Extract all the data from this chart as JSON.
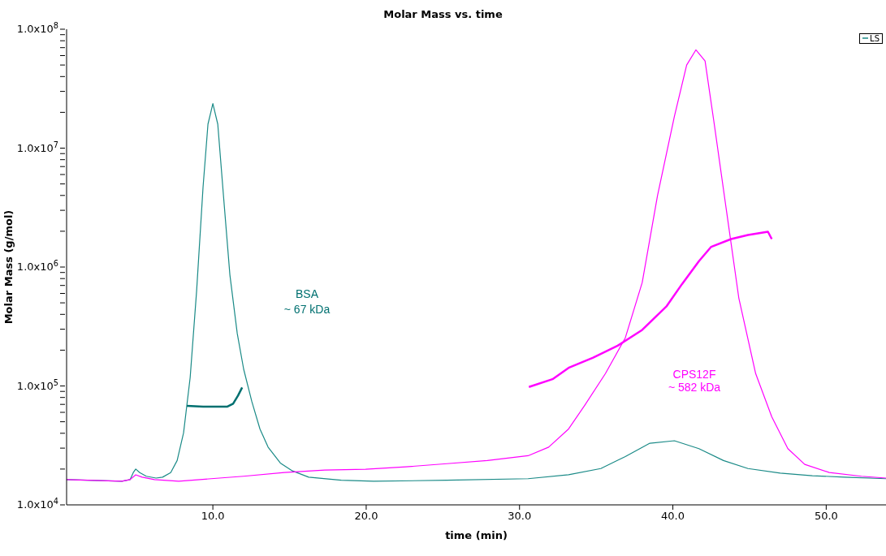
{
  "chart_data": {
    "type": "line",
    "title": "Molar Mass vs. time",
    "xlabel": "time (min)",
    "ylabel": "Molar Mass (g/mol)",
    "log": "y",
    "grid": false,
    "legend": "top right",
    "marker": "none",
    "line_style": "solid",
    "xlim": [
      0.46,
      53.9
    ],
    "xticks": [
      {
        "value": 10,
        "label": "10.0"
      },
      {
        "value": 20,
        "label": "20.0"
      },
      {
        "value": 30,
        "label": "30.0"
      },
      {
        "value": 40,
        "label": "40.0"
      },
      {
        "value": 50,
        "label": "50.0"
      }
    ],
    "ylim": [
      10000,
      100000000
    ],
    "yticks": [
      {
        "value": 10000,
        "label": "1.0x10$^{4}$"
      },
      {
        "value": 20000,
        "label": null
      },
      {
        "value": 30000,
        "label": null
      },
      {
        "value": 40000,
        "label": null
      },
      {
        "value": 50000,
        "label": null
      },
      {
        "value": 60000,
        "label": null
      },
      {
        "value": 70000,
        "label": null
      },
      {
        "value": 80000,
        "label": null
      },
      {
        "value": 90000,
        "label": null
      },
      {
        "value": 100000,
        "label": "1.0x10$^{5}$"
      },
      {
        "value": 200000,
        "label": null
      },
      {
        "value": 300000,
        "label": null
      },
      {
        "value": 400000,
        "label": null
      },
      {
        "value": 500000,
        "label": null
      },
      {
        "value": 600000,
        "label": null
      },
      {
        "value": 700000,
        "label": null
      },
      {
        "value": 800000,
        "label": null
      },
      {
        "value": 900000,
        "label": null
      },
      {
        "value": 1000000,
        "label": "1.0x10$^{6}$"
      },
      {
        "value": 2000000,
        "label": null
      },
      {
        "value": 3000000,
        "label": null
      },
      {
        "value": 4000000,
        "label": null
      },
      {
        "value": 5000000,
        "label": null
      },
      {
        "value": 6000000,
        "label": null
      },
      {
        "value": 7000000,
        "label": null
      },
      {
        "value": 8000000,
        "label": null
      },
      {
        "value": 9000000,
        "label": null
      },
      {
        "value": 10000000,
        "label": "1.0x10$^{7}$"
      },
      {
        "value": 20000000,
        "label": null
      },
      {
        "value": 30000000,
        "label": null
      },
      {
        "value": 40000000,
        "label": null
      },
      {
        "value": 50000000,
        "label": null
      },
      {
        "value": 60000000,
        "label": null
      },
      {
        "value": 70000000,
        "label": null
      },
      {
        "value": 80000000,
        "label": null
      },
      {
        "value": 90000000,
        "label": null
      },
      {
        "value": 100000000,
        "label": "1.0x10$^{8}$"
      }
    ],
    "series": [
      {
        "name": "LS",
        "color": "#1a8a87",
        "x": [
          0.46,
          4.07,
          4.6,
          4.81,
          4.97,
          5.23,
          5.66,
          6.29,
          6.72,
          7.25,
          7.67,
          8.09,
          8.52,
          8.94,
          9.36,
          9.68,
          10.0,
          10.32,
          10.69,
          11.11,
          11.59,
          12.01,
          12.54,
          13.07,
          13.6,
          14.4,
          15.19,
          16.25,
          18.37,
          20.49,
          25.26,
          30.56,
          33.2,
          35.3,
          36.9,
          38.5,
          40.1,
          41.7,
          43.3,
          44.9,
          47.0,
          49.1,
          51.2,
          53.9
        ],
        "values": [
          16300,
          15800,
          16300,
          18700,
          20000,
          18700,
          17400,
          16800,
          17100,
          18700,
          23600,
          40400,
          118000,
          630000,
          4700000,
          15900000,
          23700000,
          15900000,
          4000000,
          860000,
          276000,
          138000,
          74000,
          43500,
          30600,
          22500,
          19300,
          17100,
          16100,
          15800,
          16100,
          16600,
          17900,
          20200,
          25500,
          33000,
          34600,
          29700,
          23600,
          20200,
          18500,
          17600,
          17100,
          16600
        ]
      },
      {
        "color": "#ff00ff",
        "x": [
          0.46,
          4.07,
          4.6,
          4.97,
          5.39,
          6.19,
          7.77,
          9.89,
          12.0,
          14.66,
          17.3,
          19.96,
          22.6,
          25.26,
          27.9,
          30.56,
          31.9,
          33.2,
          34.26,
          35.6,
          36.9,
          38.0,
          39.0,
          40.1,
          40.9,
          41.5,
          42.1,
          42.7,
          43.5,
          44.3,
          45.4,
          46.45,
          47.5,
          48.6,
          50.2,
          52.3,
          53.9
        ],
        "values": [
          16300,
          15800,
          16300,
          17900,
          17100,
          16300,
          15800,
          16600,
          17400,
          18700,
          19600,
          19900,
          20900,
          22200,
          23600,
          25900,
          30600,
          43500,
          69000,
          127000,
          254000,
          740000,
          4000000,
          18500000,
          50000000,
          67000000,
          54000000,
          15900000,
          2950000,
          550000,
          127000,
          55000,
          29700,
          21900,
          18700,
          17400,
          16800
        ]
      },
      {
        "color": "#007070",
        "x": [
          8.3,
          9.36,
          10.95,
          11.32,
          11.64,
          11.91
        ],
        "values": [
          68000,
          67000,
          67000,
          71000,
          83000,
          97000
        ]
      },
      {
        "color": "#ff00ff",
        "x": [
          30.61,
          32.15,
          33.2,
          34.8,
          36.4,
          38.0,
          39.6,
          40.6,
          41.7,
          42.5,
          43.8,
          44.9,
          46.2,
          46.45
        ],
        "values": [
          98000,
          114000,
          142000,
          173000,
          218000,
          296000,
          470000,
          720000,
          1120000,
          1480000,
          1720000,
          1860000,
          1980000,
          1720000
        ]
      }
    ],
    "annotations": [
      "BSA",
      "~ 67 kDa",
      "CPS12F",
      "~ 582 kDa"
    ]
  }
}
